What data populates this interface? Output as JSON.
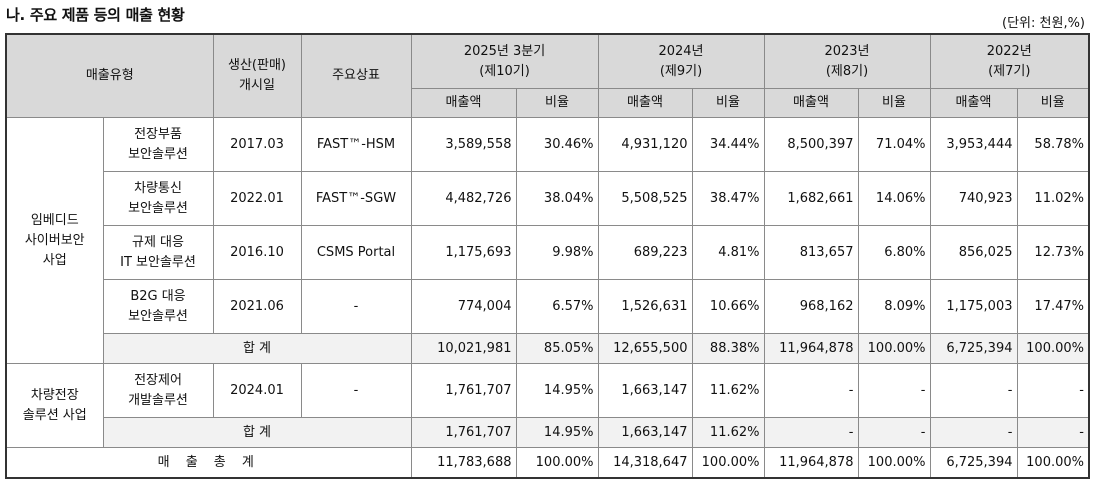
{
  "title": "나. 주요 제품 등의 매출 현황",
  "unit": "(단위: 천원,%)",
  "header": {
    "type": "매출유형",
    "start": "생산(판매)\n개시일",
    "brand": "주요상표",
    "periods": [
      {
        "year": "2025년 3분기",
        "term": "(제10기)"
      },
      {
        "year": "2024년",
        "term": "(제9기)"
      },
      {
        "year": "2023년",
        "term": "(제8기)"
      },
      {
        "year": "2022년",
        "term": "(제7기)"
      }
    ],
    "sales": "매출액",
    "ratio": "비율"
  },
  "groups": [
    {
      "name": "임베디드\n사이버보안\n사업",
      "rows": [
        {
          "product": "전장부품\n보안솔루션",
          "start": "2017.03",
          "brand": "FAST™-HSM",
          "values": [
            "3,589,558",
            "30.46%",
            "4,931,120",
            "34.44%",
            "8,500,397",
            "71.04%",
            "3,953,444",
            "58.78%"
          ]
        },
        {
          "product": "차량통신\n보안솔루션",
          "start": "2022.01",
          "brand": "FAST™-SGW",
          "values": [
            "4,482,726",
            "38.04%",
            "5,508,525",
            "38.47%",
            "1,682,661",
            "14.06%",
            "740,923",
            "11.02%"
          ]
        },
        {
          "product": "규제 대응\nIT 보안솔루션",
          "start": "2016.10",
          "brand": "CSMS Portal",
          "values": [
            "1,175,693",
            "9.98%",
            "689,223",
            "4.81%",
            "813,657",
            "6.80%",
            "856,025",
            "12.73%"
          ]
        },
        {
          "product": "B2G 대응\n보안솔루션",
          "start": "2021.06",
          "brand": "-",
          "values": [
            "774,004",
            "6.57%",
            "1,526,631",
            "10.66%",
            "968,162",
            "8.09%",
            "1,175,003",
            "17.47%"
          ]
        }
      ],
      "total_label": "합 계",
      "total": [
        "10,021,981",
        "85.05%",
        "12,655,500",
        "88.38%",
        "11,964,878",
        "100.00%",
        "6,725,394",
        "100.00%"
      ]
    },
    {
      "name": "차량전장\n솔루션 사업",
      "rows": [
        {
          "product": "전장제어\n개발솔루션",
          "start": "2024.01",
          "brand": "-",
          "values": [
            "1,761,707",
            "14.95%",
            "1,663,147",
            "11.62%",
            "-",
            "-",
            "-",
            "-"
          ]
        }
      ],
      "total_label": "합 계",
      "total": [
        "1,761,707",
        "14.95%",
        "1,663,147",
        "11.62%",
        "-",
        "-",
        "-",
        "-"
      ]
    }
  ],
  "grand_total_label": "매 출 총 계",
  "grand_total": [
    "11,783,688",
    "100.00%",
    "14,318,647",
    "100.00%",
    "11,964,878",
    "100.00%",
    "6,725,394",
    "100.00%"
  ]
}
